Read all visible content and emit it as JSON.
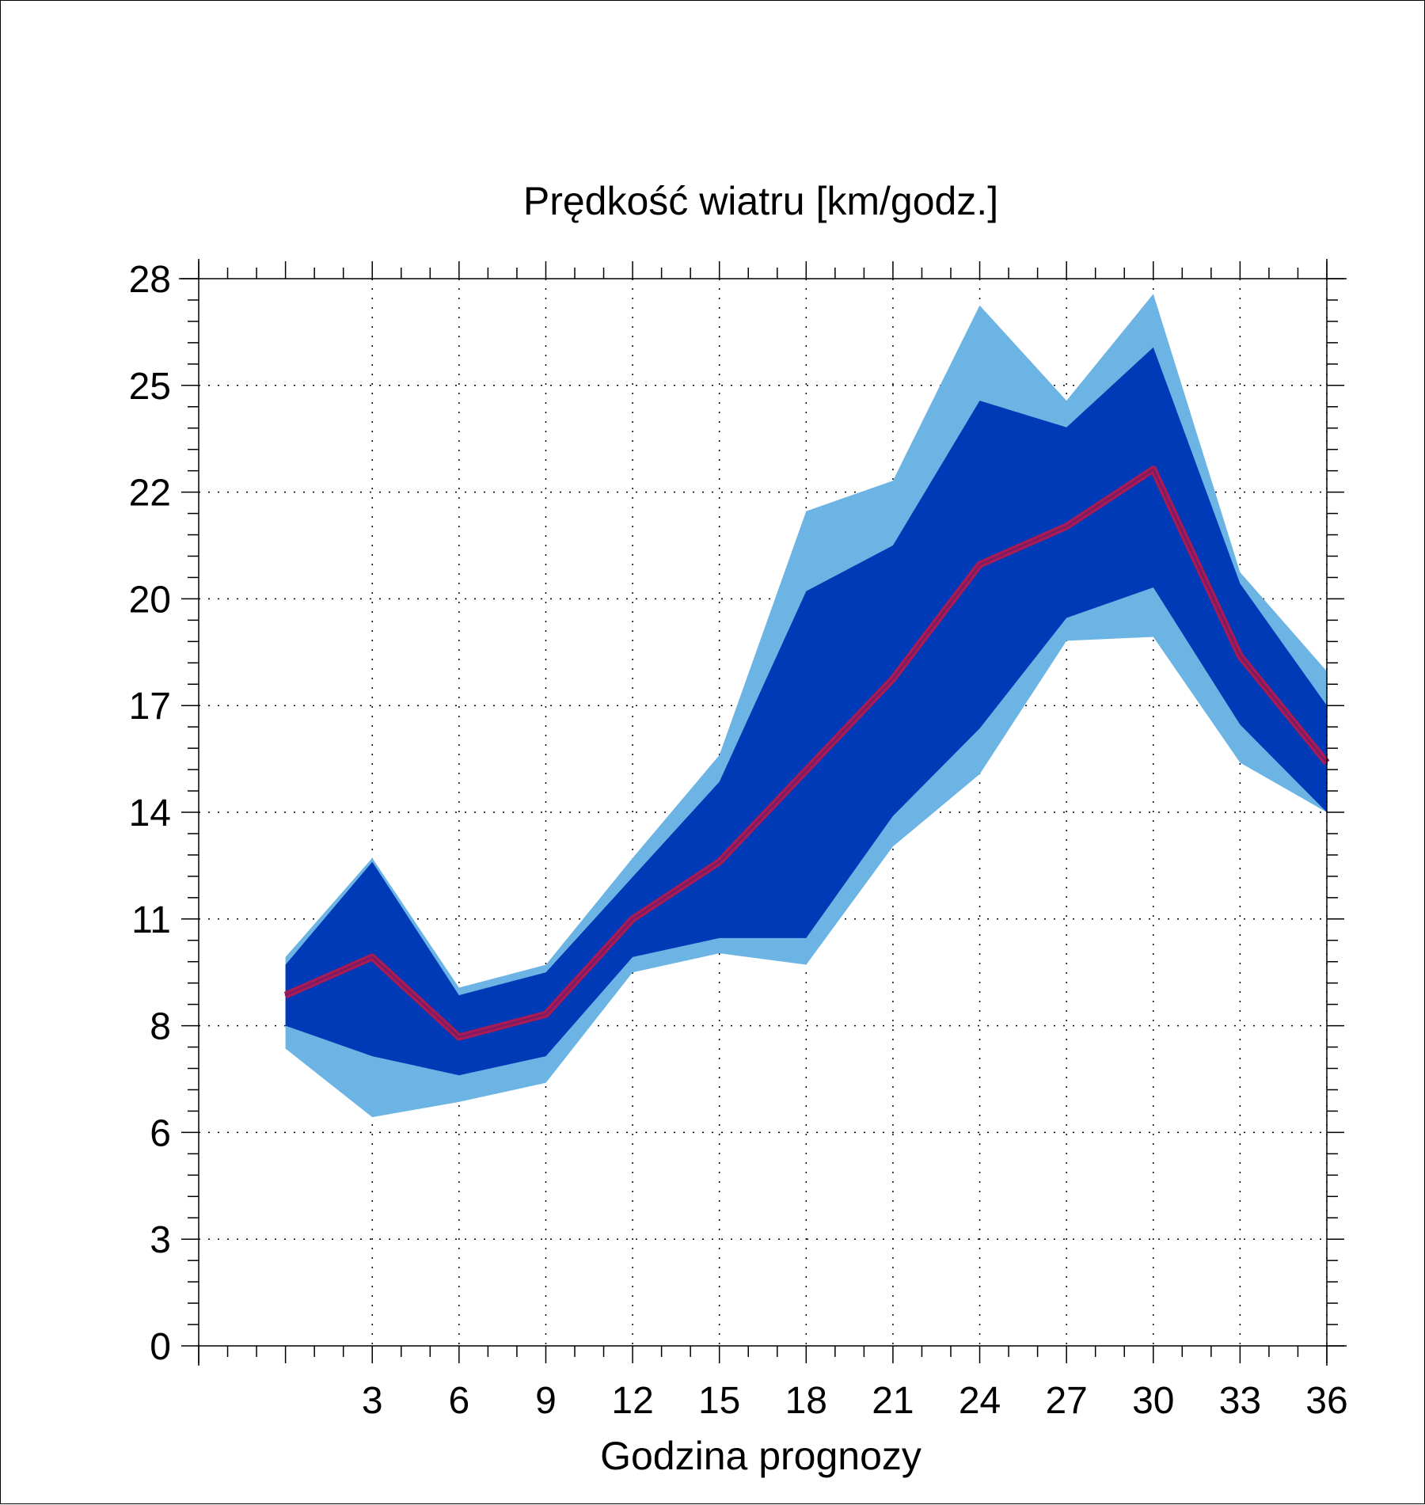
{
  "chart_data": {
    "type": "area",
    "title": "Prędkość wiatru [km/godz.]",
    "xlabel": "Godzina prognozy",
    "ylabel": "",
    "xlim": [
      -3,
      36
    ],
    "ylim": [
      0,
      28
    ],
    "x_ticks": [
      3,
      6,
      9,
      12,
      15,
      18,
      21,
      24,
      27,
      30,
      33,
      36
    ],
    "x_tick_labels": [
      "3",
      "6",
      "9",
      "12",
      "15",
      "18",
      "21",
      "24",
      "27",
      "30",
      "33",
      "36"
    ],
    "y_ticks": [
      0,
      2.8,
      5.6,
      8.4,
      11.2,
      14,
      16.8,
      19.6,
      22.4,
      25.2,
      28
    ],
    "y_tick_labels": [
      "0",
      "3",
      "6",
      "8",
      "11",
      "14",
      "17",
      "20",
      "22",
      "25",
      "28"
    ],
    "grid": true,
    "x": [
      0,
      3,
      6,
      9,
      12,
      15,
      18,
      21,
      24,
      27,
      30,
      33,
      36
    ],
    "series": [
      {
        "role": "outer_band_upper",
        "values": [
          10.2,
          12.8,
          9.4,
          10.0,
          12.8,
          15.5,
          21.9,
          22.7,
          27.3,
          24.8,
          27.6,
          20.3,
          17.7
        ]
      },
      {
        "role": "outer_band_lower",
        "values": [
          7.8,
          6.0,
          6.4,
          6.9,
          9.8,
          10.3,
          10.0,
          13.1,
          15.0,
          18.5,
          18.6,
          15.3,
          14.0
        ]
      },
      {
        "role": "inner_band_upper",
        "values": [
          10.0,
          12.7,
          9.2,
          9.8,
          12.3,
          14.8,
          19.8,
          21.0,
          24.8,
          24.1,
          26.2,
          20.0,
          16.8
        ]
      },
      {
        "role": "inner_band_lower",
        "values": [
          8.4,
          7.6,
          7.1,
          7.6,
          10.2,
          10.7,
          10.7,
          13.9,
          16.2,
          19.1,
          19.9,
          16.3,
          14.0
        ]
      },
      {
        "role": "median",
        "values": [
          9.2,
          10.2,
          8.1,
          8.7,
          11.2,
          12.7,
          15.1,
          17.5,
          20.5,
          21.5,
          23.0,
          18.1,
          15.3
        ]
      }
    ],
    "colors": {
      "outer_band": "#6cb4e4",
      "inner_band": "#003ab7",
      "median_line": "#a81b55",
      "median_core": "#7e1a62",
      "grid": "#000000",
      "axes": "#000000"
    }
  }
}
